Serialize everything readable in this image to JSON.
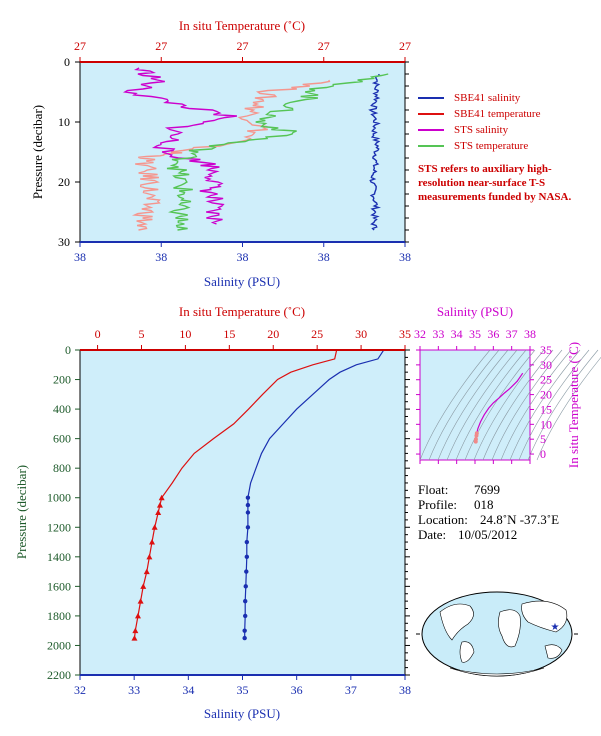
{
  "colors": {
    "plot_bg": "#cfeefa",
    "sbe41_salinity": "#1a2fb0",
    "sbe41_temperature": "#dd1010",
    "sts_salinity": "#cc00cc",
    "sts_temperature": "#55c455",
    "sbe41_temperature_light": "#f5968e",
    "axis_red": "#cc0000",
    "axis_blue": "#1a2fb0",
    "axis_green": "#1d5a2a",
    "axis_magenta": "#cc00cc"
  },
  "top_panel": {
    "title_top": "In situ Temperature (˚C)",
    "xlabel": "Salinity (PSU)",
    "ylabel": "Pressure (decibar)",
    "legend": [
      {
        "label": "SBE41 salinity",
        "color": "#1a2fb0"
      },
      {
        "label": "SBE41 temperature",
        "color": "#dd1010"
      },
      {
        "label": "STS salinity",
        "color": "#cc00cc"
      },
      {
        "label": "STS temperature",
        "color": "#55c455"
      }
    ],
    "note": "STS refers to auxiliary high-resolution near-surface T-S measurements funded by NASA."
  },
  "bottom_panel": {
    "title_top": "In situ Temperature (˚C)",
    "xlabel": "Salinity (PSU)",
    "ylabel": "Pressure (decibar)"
  },
  "ts_panel": {
    "title_top": "Salinity (PSU)",
    "ylabel": "In situ Temperature (˚C)"
  },
  "float_info": {
    "float_label": "Float:",
    "float_value": "7699",
    "profile_label": "Profile:",
    "profile_value": "018",
    "location_label": "Location:",
    "location_value": "24.8˚N  -37.3˚E",
    "date_label": "Date:",
    "date_value": "10/05/2012"
  },
  "chart_data": [
    {
      "type": "line",
      "name": "near-surface profile",
      "x_salinity_ticks": [
        "38",
        "38",
        "38",
        "38",
        "38"
      ],
      "x_temperature_ticks": [
        "27",
        "27",
        "27",
        "27",
        "27"
      ],
      "y_ticks": [
        0,
        10,
        20,
        30
      ],
      "ylim": [
        30,
        0
      ],
      "series": [
        {
          "name": "SBE41 salinity",
          "pressure": [
            2,
            4,
            6,
            8,
            10,
            12,
            14,
            16,
            18,
            20,
            22,
            24,
            26,
            28
          ],
          "position": [
            0.92,
            0.91,
            0.915,
            0.9,
            0.91,
            0.905,
            0.915,
            0.91,
            0.905,
            0.9,
            0.905,
            0.91,
            0.905,
            0.905
          ]
        },
        {
          "name": "SBE41 temperature",
          "pressure": [
            3,
            5,
            7,
            9,
            11,
            13,
            15,
            16,
            18,
            20,
            22,
            24,
            26,
            28
          ],
          "position": [
            0.8,
            0.58,
            0.55,
            0.52,
            0.56,
            0.5,
            0.3,
            0.2,
            0.2,
            0.22,
            0.21,
            0.21,
            0.2,
            0.18
          ]
        },
        {
          "name": "STS salinity",
          "pressure": [
            1,
            3,
            5,
            7,
            9,
            11,
            13,
            15,
            17,
            19,
            21,
            23,
            25,
            27
          ],
          "position": [
            0.18,
            0.24,
            0.16,
            0.3,
            0.45,
            0.3,
            0.28,
            0.25,
            0.4,
            0.42,
            0.4,
            0.41,
            0.4,
            0.42
          ]
        },
        {
          "name": "STS temperature",
          "pressure": [
            2,
            4,
            6,
            8,
            10,
            12,
            14,
            16,
            18,
            20,
            22,
            24,
            26,
            28
          ],
          "position": [
            0.98,
            0.75,
            0.7,
            0.62,
            0.55,
            0.66,
            0.4,
            0.32,
            0.3,
            0.31,
            0.32,
            0.3,
            0.31,
            0.3
          ]
        }
      ]
    },
    {
      "type": "line",
      "name": "full profile",
      "xlim_salinity": [
        32,
        38
      ],
      "xlim_temperature": [
        -2,
        35
      ],
      "ylim": [
        2200,
        0
      ],
      "x_salinity_ticks": [
        32,
        33,
        34,
        35,
        36,
        37,
        38
      ],
      "x_temperature_ticks": [
        0,
        5,
        10,
        15,
        20,
        25,
        30,
        35
      ],
      "y_ticks": [
        0,
        200,
        400,
        600,
        800,
        1000,
        1200,
        1400,
        1600,
        1800,
        2000,
        2200
      ],
      "series": [
        {
          "name": "SBE41 temperature",
          "pressure": [
            5,
            60,
            100,
            150,
            200,
            300,
            400,
            500,
            600,
            700,
            800,
            900,
            1000,
            1050,
            1100,
            1200,
            1300,
            1400,
            1500,
            1600,
            1700,
            1800,
            1900,
            1950
          ],
          "values": [
            27.2,
            27.0,
            24.5,
            22.0,
            20.5,
            18.8,
            17.2,
            15.5,
            13.2,
            11.0,
            9.6,
            8.5,
            7.3,
            7.1,
            6.9,
            6.5,
            6.2,
            5.9,
            5.6,
            5.2,
            4.9,
            4.6,
            4.3,
            4.2
          ]
        },
        {
          "name": "SBE41 salinity",
          "pressure": [
            5,
            60,
            100,
            150,
            200,
            300,
            400,
            500,
            600,
            700,
            800,
            900,
            1000,
            1050,
            1100,
            1200,
            1300,
            1400,
            1500,
            1600,
            1700,
            1800,
            1900,
            1950
          ],
          "values": [
            37.6,
            37.5,
            37.1,
            36.8,
            36.6,
            36.3,
            36.0,
            35.75,
            35.5,
            35.35,
            35.25,
            35.15,
            35.1,
            35.1,
            35.1,
            35.1,
            35.08,
            35.08,
            35.07,
            35.06,
            35.05,
            35.05,
            35.04,
            35.04
          ]
        }
      ],
      "markers_from_pressure": 1000
    },
    {
      "type": "scatter",
      "name": "T-S diagram",
      "xlim": [
        32,
        38
      ],
      "ylim": [
        -2,
        35
      ],
      "x_ticks": [
        32,
        33,
        34,
        35,
        36,
        37,
        38
      ],
      "y_ticks": [
        0,
        5,
        10,
        15,
        20,
        25,
        30,
        35
      ],
      "series": [
        {
          "name": "T-S",
          "salinity": [
            37.6,
            37.3,
            36.9,
            36.6,
            36.3,
            36.0,
            35.75,
            35.5,
            35.3,
            35.15,
            35.1,
            35.08,
            35.05,
            35.04
          ],
          "temperature": [
            27.2,
            24.5,
            22.0,
            20.5,
            18.8,
            17.2,
            15.5,
            13.2,
            10.8,
            8.5,
            7.0,
            6.2,
            5.0,
            4.2
          ]
        }
      ]
    }
  ]
}
